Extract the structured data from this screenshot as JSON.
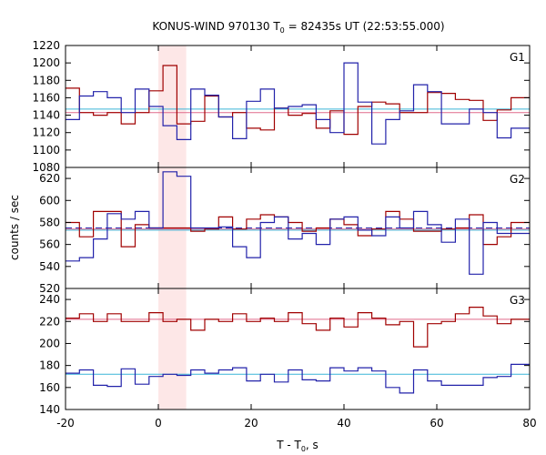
{
  "chart_data": {
    "type": "line",
    "title_main": "KONUS-WIND 970130 T",
    "title_sub": "0",
    "title_rest": " = 82435s UT (22:53:55.000)",
    "xlabel_main": "T - T",
    "xlabel_sub": "0",
    "xlabel_rest": ", s",
    "ylabel": "counts / sec",
    "xlim": [
      -20,
      80
    ],
    "x_ticks": [
      -20,
      0,
      20,
      40,
      60,
      80
    ],
    "highlight": {
      "x0": 0,
      "x1": 6,
      "color": "#fde7e7"
    },
    "colors": {
      "red": "#a00000",
      "blue": "#2222aa",
      "fit_red": "#e06a8a",
      "fit_blue": "#3ab5d8",
      "frame": "#000000"
    },
    "panels": [
      {
        "label": "G1",
        "ylim": [
          1080,
          1220
        ],
        "y_ticks": [
          1080,
          1100,
          1120,
          1140,
          1160,
          1180,
          1200,
          1220
        ],
        "x_edges": [
          -20,
          -17,
          -14,
          -11,
          -8,
          -5,
          -2,
          1,
          4,
          7,
          10,
          13,
          16,
          19,
          22,
          25,
          28,
          31,
          34,
          37,
          40,
          43,
          46,
          49,
          52,
          55,
          58,
          61,
          64,
          67,
          70,
          73,
          76,
          79,
          80
        ],
        "series": [
          {
            "color_key": "red",
            "values": [
              1171,
              1143,
              1140,
              1143,
              1130,
              1143,
              1168,
              1197,
              1130,
              1133,
              1162,
              1138,
              1143,
              1125,
              1123,
              1148,
              1140,
              1142,
              1125,
              1145,
              1118,
              1150,
              1155,
              1153,
              1143,
              1143,
              1166,
              1165,
              1158,
              1157,
              1134,
              1146,
              1160,
              1160
            ]
          },
          {
            "color_key": "blue",
            "values": [
              1135,
              1162,
              1167,
              1160,
              1143,
              1170,
              1150,
              1128,
              1112,
              1170,
              1163,
              1138,
              1113,
              1156,
              1170,
              1148,
              1150,
              1152,
              1135,
              1120,
              1200,
              1155,
              1107,
              1135,
              1145,
              1175,
              1167,
              1130,
              1130,
              1147,
              1143,
              1114,
              1125,
              1125
            ]
          }
        ],
        "fits": [
          {
            "color_key": "fit_red",
            "value": 1143
          },
          {
            "color_key": "fit_blue",
            "value": 1147
          }
        ]
      },
      {
        "label": "G2",
        "ylim": [
          520,
          630
        ],
        "y_ticks": [
          520,
          540,
          560,
          580,
          600,
          620
        ],
        "x_edges": [
          -20,
          -17,
          -14,
          -11,
          -8,
          -5,
          -2,
          1,
          4,
          7,
          10,
          13,
          16,
          19,
          22,
          25,
          28,
          31,
          34,
          37,
          40,
          43,
          46,
          49,
          52,
          55,
          58,
          61,
          64,
          67,
          70,
          73,
          76,
          79,
          80
        ],
        "series": [
          {
            "color_key": "red",
            "values": [
              580,
              567,
              590,
              590,
              558,
              578,
              575,
              575,
              575,
              572,
              574,
              585,
              574,
              583,
              587,
              585,
              580,
              572,
              575,
              583,
              578,
              568,
              574,
              590,
              583,
              572,
              572,
              574,
              575,
              587,
              560,
              567,
              580,
              580
            ]
          },
          {
            "color_key": "blue",
            "values": [
              545,
              548,
              565,
              588,
              583,
              590,
              575,
              626,
              622,
              575,
              575,
              576,
              558,
              548,
              580,
              585,
              565,
              570,
              560,
              583,
              585,
              573,
              568,
              585,
              575,
              590,
              578,
              562,
              583,
              533,
              580,
              570,
              570,
              570
            ]
          }
        ],
        "fits": [
          {
            "color_key": "fit_red",
            "value": 574
          },
          {
            "color_key": "fit_blue",
            "value": 573
          },
          {
            "color_key": "blue",
            "value": 575,
            "dashed": true
          }
        ]
      },
      {
        "label": "G3",
        "ylim": [
          140,
          250
        ],
        "y_ticks": [
          140,
          160,
          180,
          200,
          220,
          240
        ],
        "x_edges": [
          -20,
          -17,
          -14,
          -11,
          -8,
          -5,
          -2,
          1,
          4,
          7,
          10,
          13,
          16,
          19,
          22,
          25,
          28,
          31,
          34,
          37,
          40,
          43,
          46,
          49,
          52,
          55,
          58,
          61,
          64,
          67,
          70,
          73,
          76,
          79,
          80
        ],
        "series": [
          {
            "color_key": "red",
            "values": [
              223,
              227,
              220,
              227,
              220,
              220,
              228,
              220,
              222,
              212,
              222,
              220,
              227,
              220,
              223,
              220,
              228,
              218,
              212,
              223,
              215,
              228,
              223,
              217,
              220,
              197,
              218,
              220,
              227,
              233,
              225,
              218,
              222,
              222
            ]
          },
          {
            "color_key": "blue",
            "values": [
              173,
              176,
              162,
              161,
              177,
              163,
              170,
              172,
              171,
              176,
              173,
              176,
              178,
              166,
              172,
              165,
              176,
              167,
              166,
              178,
              175,
              178,
              175,
              160,
              155,
              176,
              166,
              162,
              162,
              162,
              169,
              170,
              181,
              181
            ]
          }
        ],
        "fits": [
          {
            "color_key": "fit_red",
            "value": 222
          },
          {
            "color_key": "fit_blue",
            "value": 172
          }
        ]
      }
    ]
  }
}
